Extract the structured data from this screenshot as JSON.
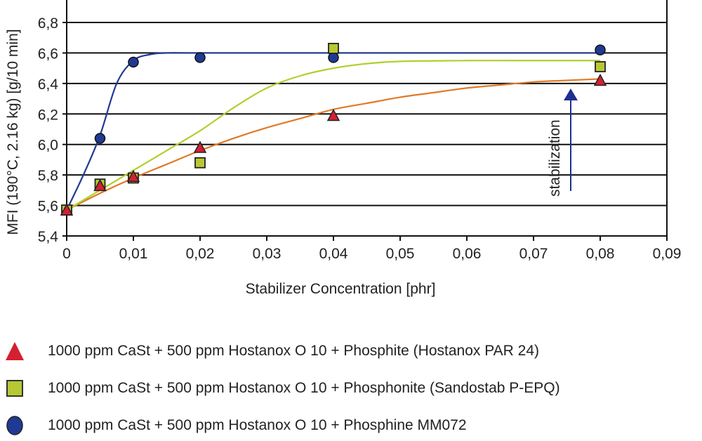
{
  "chart_data": {
    "type": "scatter",
    "title": "",
    "xlabel": "Stabilizer Concentration [phr]",
    "ylabel": "MFI (190°C, 2.16 kg) [g/10 min]",
    "xlim": [
      0,
      0.09
    ],
    "ylim": [
      5.4,
      6.8
    ],
    "xticks": [
      0,
      0.01,
      0.02,
      0.03,
      0.04,
      0.05,
      0.06,
      0.07,
      0.08,
      0.09
    ],
    "xtick_labels": [
      "0",
      "0,01",
      "0,02",
      "0,03",
      "0,04",
      "0,05",
      "0,06",
      "0,07",
      "0,08",
      "0,09"
    ],
    "yticks": [
      5.4,
      5.6,
      5.8,
      6.0,
      6.2,
      6.4,
      6.6,
      6.8
    ],
    "ytick_labels": [
      "5,4",
      "5,6",
      "5,8",
      "6,0",
      "6,2",
      "6,4",
      "6,6",
      "6,8"
    ],
    "grid": "horizontal",
    "legend_position": "bottom",
    "annotation": {
      "text": "stabilization",
      "arrow": "up",
      "color": "#1f2f8f"
    },
    "series": [
      {
        "name": "1000 ppm CaSt + 500 ppm Hostanox O 10 + Phosphite (Hostanox PAR 24)",
        "marker": "triangle",
        "marker_color": "#d42030",
        "line_color": "#e07a28",
        "x": [
          0,
          0.005,
          0.01,
          0.02,
          0.04,
          0.08
        ],
        "y": [
          5.57,
          5.73,
          5.79,
          5.98,
          6.19,
          6.42
        ],
        "fit": [
          [
            0,
            5.57
          ],
          [
            0.005,
            5.68
          ],
          [
            0.01,
            5.78
          ],
          [
            0.015,
            5.87
          ],
          [
            0.02,
            5.96
          ],
          [
            0.025,
            6.04
          ],
          [
            0.03,
            6.11
          ],
          [
            0.035,
            6.17
          ],
          [
            0.04,
            6.23
          ],
          [
            0.045,
            6.27
          ],
          [
            0.05,
            6.31
          ],
          [
            0.055,
            6.34
          ],
          [
            0.06,
            6.37
          ],
          [
            0.065,
            6.39
          ],
          [
            0.07,
            6.41
          ],
          [
            0.075,
            6.42
          ],
          [
            0.08,
            6.43
          ]
        ]
      },
      {
        "name": "1000 ppm CaSt + 500 ppm Hostanox O 10 + Phosphonite (Sandostab P-EPQ)",
        "marker": "square",
        "marker_color": "#b8c832",
        "line_color": "#b0d030",
        "x": [
          0,
          0.005,
          0.01,
          0.02,
          0.04,
          0.08
        ],
        "y": [
          5.57,
          5.74,
          5.78,
          5.88,
          6.63,
          6.51
        ],
        "fit": [
          [
            0,
            5.57
          ],
          [
            0.005,
            5.7
          ],
          [
            0.01,
            5.83
          ],
          [
            0.015,
            5.96
          ],
          [
            0.02,
            6.09
          ],
          [
            0.025,
            6.24
          ],
          [
            0.03,
            6.37
          ],
          [
            0.035,
            6.45
          ],
          [
            0.04,
            6.5
          ],
          [
            0.045,
            6.53
          ],
          [
            0.05,
            6.545
          ],
          [
            0.06,
            6.55
          ],
          [
            0.07,
            6.55
          ],
          [
            0.08,
            6.55
          ]
        ]
      },
      {
        "name": "1000 ppm CaSt + 500 ppm Hostanox O 10  + Phosphine MM072",
        "marker": "circle",
        "marker_color": "#1f3a93",
        "line_color": "#1f3a93",
        "x": [
          0,
          0.005,
          0.01,
          0.02,
          0.04,
          0.08
        ],
        "y": [
          5.57,
          6.04,
          6.54,
          6.57,
          6.57,
          6.62
        ],
        "fit": [
          [
            0,
            5.57
          ],
          [
            0.0025,
            5.8
          ],
          [
            0.005,
            6.06
          ],
          [
            0.0075,
            6.4
          ],
          [
            0.01,
            6.55
          ],
          [
            0.0125,
            6.59
          ],
          [
            0.015,
            6.6
          ],
          [
            0.02,
            6.6
          ],
          [
            0.04,
            6.6
          ],
          [
            0.06,
            6.6
          ],
          [
            0.08,
            6.6
          ]
        ]
      }
    ]
  }
}
